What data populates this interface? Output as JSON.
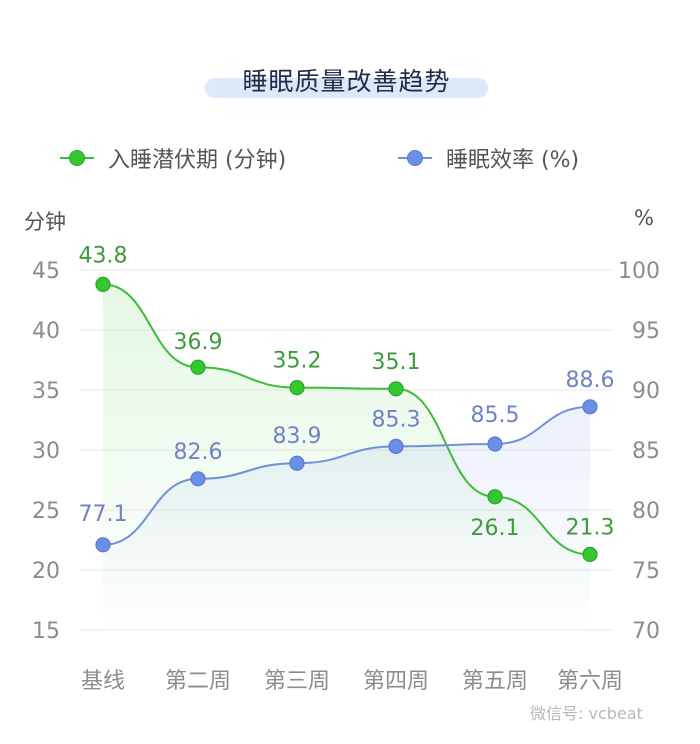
{
  "title": "睡眠质量改善趋势",
  "legend": {
    "series1": "入睡潜伏期 (分钟)",
    "series2": "睡眠效率 (%)"
  },
  "watermark": "微信号: vcbeat",
  "colors": {
    "green": "#3dbb3a",
    "green_fill": "#33c92e",
    "blue": "#6f8fdc",
    "blue_fill": "#6a8fe6",
    "grid": "#e8e8e8",
    "axis_text": "#8c8c8c"
  },
  "chart_data": {
    "type": "line",
    "categories": [
      "基线",
      "第二周",
      "第三周",
      "第四周",
      "第五周",
      "第六周"
    ],
    "series": [
      {
        "name": "入睡潜伏期 (分钟)",
        "axis": "left",
        "values": [
          43.8,
          36.9,
          35.2,
          35.1,
          26.1,
          21.3
        ],
        "labels": [
          "43.8",
          "36.9",
          "35.2",
          "35.1",
          "26.1",
          "21.3"
        ]
      },
      {
        "name": "睡眠效率 (%)",
        "axis": "right",
        "values": [
          77.1,
          82.6,
          83.9,
          85.3,
          85.5,
          88.6
        ],
        "labels": [
          "77.1",
          "82.6",
          "83.9",
          "85.3",
          "85.5",
          "88.6"
        ]
      }
    ],
    "y_left": {
      "label": "分钟",
      "ticks": [
        15,
        20,
        25,
        30,
        35,
        40,
        45
      ],
      "ylim": [
        15,
        45
      ]
    },
    "y_right": {
      "label": "%",
      "ticks": [
        70,
        75,
        80,
        85,
        90,
        95,
        100
      ],
      "ylim": [
        70,
        100
      ]
    },
    "grid": true,
    "legend_position": "top"
  }
}
